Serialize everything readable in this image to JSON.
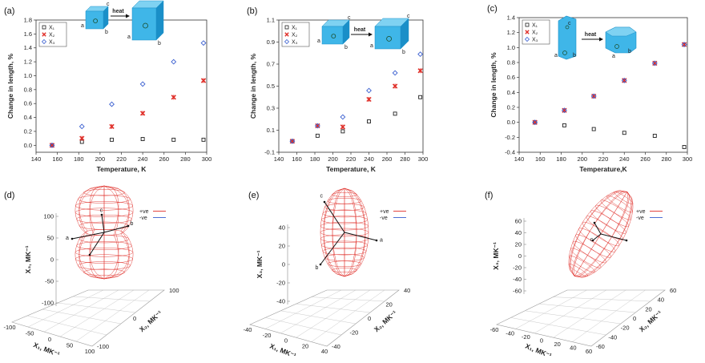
{
  "chart_data": [
    {
      "panel": "(a)",
      "type": "scatter",
      "xlabel": "Temperature, K",
      "ylabel": "Change in length, %",
      "xlim": [
        140,
        300
      ],
      "ylim": [
        -0.1,
        1.8
      ],
      "xticks": [
        140,
        160,
        180,
        200,
        220,
        240,
        260,
        280,
        300
      ],
      "yticks": [
        "-0.2",
        "0.0",
        "0.2",
        "0.4",
        "0.6",
        "0.8",
        "1.0",
        "1.2",
        "1.4",
        "1.6",
        "1.8"
      ],
      "ytick_values": [
        -0.2,
        0.0,
        0.2,
        0.4,
        0.6,
        0.8,
        1.0,
        1.2,
        1.4,
        1.6,
        1.8
      ],
      "legend_position": "top-left",
      "x": [
        155,
        183,
        211,
        240,
        269,
        297
      ],
      "series": [
        {
          "name": "X₁",
          "marker": "square",
          "color": "#222222",
          "values": [
            0.0,
            0.05,
            0.08,
            0.09,
            0.08,
            0.08
          ]
        },
        {
          "name": "X₂",
          "marker": "x",
          "color": "#e0302a",
          "values": [
            0.0,
            0.1,
            0.27,
            0.46,
            0.69,
            0.93
          ]
        },
        {
          "name": "X₃",
          "marker": "diamond",
          "color": "#3a5fd0",
          "values": [
            0.0,
            0.27,
            0.59,
            0.88,
            1.2,
            1.47
          ]
        }
      ],
      "inset_labels": [
        "c",
        "a",
        "b",
        "heat",
        "c",
        "a",
        "b"
      ]
    },
    {
      "panel": "(b)",
      "type": "scatter",
      "xlabel": "Temperature, K",
      "ylabel": "Change in length, %",
      "xlim": [
        140,
        300
      ],
      "ylim": [
        -0.1,
        1.1
      ],
      "xticks": [
        140,
        160,
        180,
        200,
        220,
        240,
        260,
        280,
        300
      ],
      "yticks": [
        "-0.1",
        "0.1",
        "0.3",
        "0.5",
        "0.7",
        "0.9",
        "1.1"
      ],
      "ytick_values": [
        -0.1,
        0.1,
        0.3,
        0.5,
        0.7,
        0.9,
        1.1
      ],
      "legend_position": "top-left",
      "x": [
        155,
        183,
        211,
        240,
        269,
        297
      ],
      "series": [
        {
          "name": "X₁",
          "marker": "square",
          "color": "#222222",
          "values": [
            0.0,
            0.05,
            0.09,
            0.18,
            0.25,
            0.4
          ]
        },
        {
          "name": "X₂",
          "marker": "x",
          "color": "#e0302a",
          "values": [
            0.0,
            0.14,
            0.13,
            0.38,
            0.5,
            0.64
          ]
        },
        {
          "name": "X₃",
          "marker": "diamond",
          "color": "#3a5fd0",
          "values": [
            0.0,
            0.14,
            0.22,
            0.46,
            0.62,
            0.79
          ]
        }
      ],
      "inset_labels": [
        "c",
        "a",
        "b",
        "heat",
        "c",
        "a",
        "b"
      ]
    },
    {
      "panel": "(c)",
      "type": "scatter",
      "xlabel": "Temperature,K",
      "ylabel": "Change in length, %",
      "xlim": [
        140,
        300
      ],
      "ylim": [
        -0.4,
        1.4
      ],
      "xticks": [
        140,
        160,
        180,
        200,
        220,
        240,
        260,
        280,
        300
      ],
      "yticks": [
        "-0.4",
        "-0.2",
        "0.0",
        "0.2",
        "0.4",
        "0.6",
        "0.8",
        "1.0",
        "1.2",
        "1.4"
      ],
      "ytick_values": [
        -0.4,
        -0.2,
        0.0,
        0.2,
        0.4,
        0.6,
        0.8,
        1.0,
        1.2,
        1.4
      ],
      "legend_position": "top-left",
      "x": [
        155,
        183,
        211,
        240,
        269,
        297
      ],
      "series": [
        {
          "name": "X₁",
          "marker": "square",
          "color": "#222222",
          "values": [
            0.0,
            -0.04,
            -0.09,
            -0.14,
            -0.18,
            -0.33
          ]
        },
        {
          "name": "X₂",
          "marker": "x",
          "color": "#e0302a",
          "values": [
            0.0,
            0.16,
            0.35,
            0.56,
            0.79,
            1.04
          ]
        },
        {
          "name": "X₃",
          "marker": "diamond",
          "color": "#3a5fd0",
          "values": [
            0.0,
            0.16,
            0.35,
            0.56,
            0.79,
            1.04
          ]
        }
      ],
      "inset_labels": [
        "c",
        "a",
        "b",
        "heat",
        "a",
        "b"
      ]
    }
  ],
  "surfaces": [
    {
      "panel": "(d)",
      "zlabel": "X₃, MK⁻¹",
      "xlabel": "X₁, MK⁻¹",
      "ylabel": "X₂, MK⁻¹",
      "zticks": [
        "100",
        "50",
        "0",
        "-50",
        "-100"
      ],
      "xticks": [
        "-100",
        "-50",
        "0",
        "50",
        "100"
      ],
      "yticks": [
        "-100",
        "0",
        "100"
      ],
      "legend": [
        "+ve",
        "-ve"
      ],
      "axis_labels": [
        "c",
        "b",
        "a"
      ],
      "shape": "dumbbell"
    },
    {
      "panel": "(e)",
      "zlabel": "X₃, MK⁻¹",
      "xlabel": "X₁, MK⁻¹",
      "ylabel": "X₂, MK⁻¹",
      "zticks": [
        "40",
        "20",
        "0",
        "-20",
        "-40"
      ],
      "xticks": [
        "-40",
        "-20",
        "0",
        "20",
        "40"
      ],
      "yticks": [
        "-40",
        "-20",
        "0",
        "20",
        "40"
      ],
      "legend": [
        "+ve",
        "-ve"
      ],
      "axis_labels": [
        "c",
        "a",
        "b"
      ],
      "shape": "ellipsoid"
    },
    {
      "panel": "(f)",
      "zlabel": "X₃, MK⁻¹",
      "xlabel": "X₁, MK⁻¹",
      "ylabel": "X₂, MK⁻¹",
      "zticks": [
        "60",
        "40",
        "20",
        "0",
        "-20",
        "-40",
        "-60"
      ],
      "xticks": [
        "-60",
        "-40",
        "-20",
        "0",
        "20",
        "40",
        "60"
      ],
      "yticks": [
        "-60",
        "-40",
        "-20",
        "0",
        "20",
        "40",
        "60"
      ],
      "legend": [
        "+ve",
        "-ve"
      ],
      "axis_labels": [
        "c"
      ],
      "shape": "tilted-ellipsoid"
    }
  ],
  "colors": {
    "surface": "#e0302a",
    "positive": "#e0302a",
    "negative": "#3a5fd0",
    "crystal": "#3fb6e8",
    "crystal_dark": "#1a8fc8"
  }
}
